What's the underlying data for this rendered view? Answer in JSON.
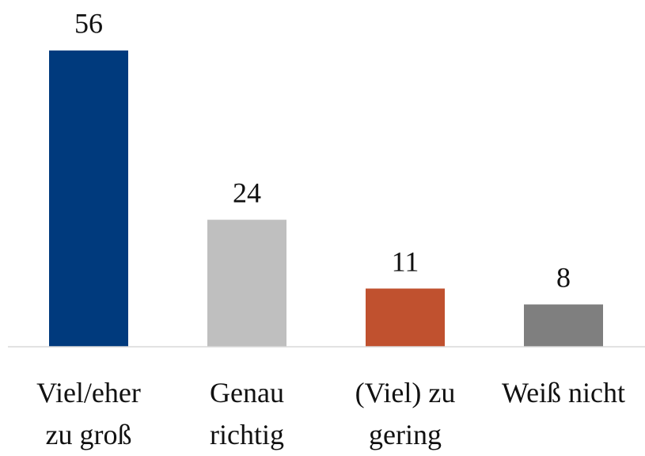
{
  "chart_data": {
    "type": "bar",
    "categories": [
      "Viel/eher\nzu groß",
      "Genau\nrichtig",
      "(Viel) zu\ngering",
      "Weiß nicht"
    ],
    "values": [
      56,
      24,
      11,
      8
    ],
    "colors": [
      "#003a7d",
      "#bfbfbf",
      "#c0512f",
      "#7f7f7f"
    ],
    "ylim": [
      0,
      60
    ]
  }
}
